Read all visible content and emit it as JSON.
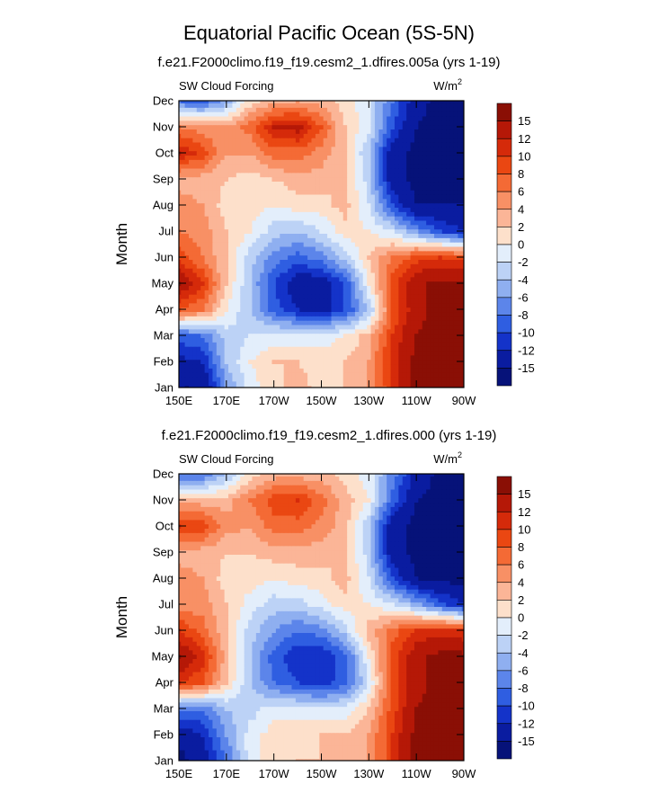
{
  "title": "Equatorial Pacific Ocean (5S-5N)",
  "colorbar": {
    "levels": [
      "15",
      "12",
      "10",
      "8",
      "6",
      "4",
      "2",
      "0",
      "-2",
      "-4",
      "-6",
      "-8",
      "-10",
      "-12",
      "-15"
    ],
    "colors": [
      "#8a0f05",
      "#b51807",
      "#d52a0a",
      "#ea4712",
      "#f46a35",
      "#f89065",
      "#fbb597",
      "#fde0cb",
      "#e3eefb",
      "#bcd2f6",
      "#8faff0",
      "#5c85ea",
      "#2f5ee1",
      "#1433c9",
      "#0a1ca0",
      "#061279"
    ]
  },
  "chart_data": [
    {
      "type": "heatmap",
      "title": "f.e21.F2000climo.f19_f19.cesm2_1.dfires.005a (yrs 1-19)",
      "left_label": "SW Cloud Forcing",
      "units_base": "W/m",
      "units_exp": "2",
      "ylabel": "Month",
      "xlabel": "",
      "x_ticks": [
        "150E",
        "170E",
        "170W",
        "150W",
        "130W",
        "110W",
        "90W"
      ],
      "y_ticks": [
        "Jan",
        "Feb",
        "Mar",
        "Apr",
        "May",
        "Jun",
        "Jul",
        "Aug",
        "Sep",
        "Oct",
        "Nov",
        "Dec"
      ],
      "x_columns": [
        "150E",
        "160E",
        "170E",
        "180",
        "170W",
        "160W",
        "150W",
        "140W",
        "130W",
        "120W",
        "110W",
        "100W",
        "90W"
      ],
      "values": [
        [
          -15,
          -15,
          -6,
          -1,
          1,
          3,
          1,
          2,
          4,
          10,
          16,
          16,
          16
        ],
        [
          -13,
          -12,
          -4,
          0,
          2,
          2,
          1,
          2,
          4,
          11,
          16,
          16,
          16
        ],
        [
          -9,
          -8,
          -3,
          -2,
          -1,
          -1,
          -1,
          0,
          3,
          10,
          15,
          16,
          16
        ],
        [
          8,
          6,
          0,
          -4,
          -9,
          -12,
          -13,
          -10,
          -4,
          8,
          14,
          16,
          16
        ],
        [
          15,
          10,
          2,
          -4,
          -10,
          -14,
          -14,
          -10,
          0,
          9,
          14,
          16,
          16
        ],
        [
          9,
          6,
          2,
          -3,
          -7,
          -9,
          -7,
          -3,
          2,
          6,
          9,
          10,
          9
        ],
        [
          6,
          5,
          2,
          0,
          -3,
          -4,
          -2,
          1,
          0,
          -2,
          -6,
          -10,
          -12
        ],
        [
          5,
          4,
          1,
          1,
          0,
          1,
          1,
          3,
          -2,
          -10,
          -15,
          -15,
          -15
        ],
        [
          3,
          3,
          2,
          1,
          2,
          3,
          3,
          2,
          -3,
          -14,
          -16,
          -16,
          -16
        ],
        [
          12,
          9,
          4,
          4,
          7,
          7,
          5,
          2,
          -4,
          -14,
          -16,
          -16,
          -16
        ],
        [
          6,
          5,
          4,
          7,
          12,
          13,
          8,
          2,
          -1,
          -10,
          -15,
          -16,
          -16
        ],
        [
          -8,
          -9,
          -5,
          1,
          3,
          4,
          3,
          1,
          -2,
          -8,
          -14,
          -16,
          -16
        ]
      ],
      "zlim": [
        -16,
        16
      ]
    },
    {
      "type": "heatmap",
      "title": "f.e21.F2000climo.f19_f19.cesm2_1.dfires.000 (yrs 1-19)",
      "left_label": "SW Cloud Forcing",
      "units_base": "W/m",
      "units_exp": "2",
      "ylabel": "Month",
      "xlabel": "",
      "x_ticks": [
        "150E",
        "170E",
        "170W",
        "150W",
        "130W",
        "110W",
        "90W"
      ],
      "y_ticks": [
        "Jan",
        "Feb",
        "Mar",
        "Apr",
        "May",
        "Jun",
        "Jul",
        "Aug",
        "Sep",
        "Oct",
        "Nov",
        "Dec"
      ],
      "x_columns": [
        "150E",
        "160E",
        "170E",
        "180",
        "170W",
        "160W",
        "150W",
        "140W",
        "130W",
        "120W",
        "110W",
        "100W",
        "90W"
      ],
      "values": [
        [
          -16,
          -14,
          -8,
          -1,
          1,
          2,
          2,
          3,
          4,
          10,
          16,
          16,
          16
        ],
        [
          -14,
          -12,
          -6,
          -1,
          1,
          1,
          2,
          2,
          4,
          10,
          16,
          16,
          16
        ],
        [
          -8,
          -8,
          -4,
          -3,
          -1,
          -1,
          -2,
          -1,
          2,
          9,
          15,
          16,
          16
        ],
        [
          10,
          8,
          2,
          -4,
          -8,
          -10,
          -11,
          -9,
          -2,
          9,
          14,
          16,
          16
        ],
        [
          15,
          11,
          3,
          -4,
          -9,
          -12,
          -12,
          -9,
          0,
          9,
          14,
          16,
          16
        ],
        [
          10,
          7,
          2,
          -3,
          -6,
          -8,
          -7,
          -3,
          3,
          7,
          10,
          11,
          10
        ],
        [
          5,
          5,
          2,
          -1,
          -3,
          -3,
          -1,
          1,
          0,
          -2,
          -5,
          -9,
          -12
        ],
        [
          5,
          4,
          1,
          1,
          0,
          1,
          1,
          3,
          -2,
          -10,
          -15,
          -16,
          -16
        ],
        [
          3,
          3,
          2,
          2,
          3,
          3,
          3,
          2,
          -3,
          -14,
          -16,
          -16,
          -16
        ],
        [
          10,
          9,
          5,
          4,
          7,
          7,
          5,
          3,
          -4,
          -14,
          -16,
          -16,
          -16
        ],
        [
          3,
          3,
          3,
          6,
          9,
          10,
          7,
          3,
          0,
          -9,
          -15,
          -16,
          -16
        ],
        [
          -8,
          -8,
          -4,
          1,
          3,
          3,
          3,
          1,
          -1,
          -7,
          -13,
          -16,
          -16
        ]
      ],
      "zlim": [
        -16,
        16
      ]
    }
  ]
}
